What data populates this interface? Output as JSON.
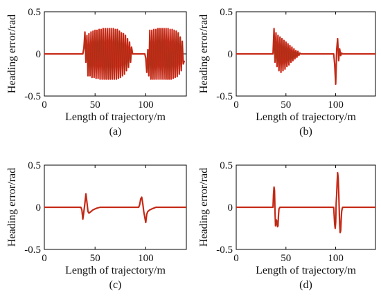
{
  "chart_data": [
    {
      "type": "line",
      "panel": "(a)",
      "xlabel": "Length of trajectory/m",
      "ylabel": "Heading error/rad",
      "xlim": [
        0,
        140
      ],
      "ylim": [
        -0.5,
        0.5
      ],
      "xticks": [
        0,
        50,
        100
      ],
      "yticks": [
        0.5,
        0,
        -0.5
      ],
      "x": [
        0,
        38,
        39,
        40,
        41,
        42,
        43,
        44,
        45,
        46,
        47,
        48,
        49,
        50,
        51,
        52,
        53,
        54,
        55,
        56,
        57,
        58,
        59,
        60,
        61,
        62,
        63,
        64,
        65,
        66,
        67,
        68,
        69,
        70,
        71,
        72,
        73,
        74,
        75,
        76,
        77,
        78,
        79,
        80,
        81,
        82,
        83,
        84,
        85,
        86,
        87,
        88,
        89,
        90,
        91,
        92,
        93,
        94,
        95,
        96,
        97,
        98,
        99,
        100,
        101,
        102,
        103,
        104,
        105,
        106,
        107,
        108,
        109,
        110,
        111,
        112,
        113,
        114,
        115,
        116,
        117,
        118,
        119,
        120,
        121,
        122,
        123,
        124,
        125,
        126,
        127,
        128,
        129,
        130,
        131,
        132,
        133,
        134,
        135,
        136,
        137,
        138
      ],
      "y": [
        0,
        0,
        0.07,
        0.26,
        -0.1,
        0.22,
        -0.26,
        0.24,
        -0.26,
        0.26,
        -0.28,
        0.27,
        -0.28,
        0.28,
        -0.29,
        0.28,
        -0.29,
        0.29,
        -0.3,
        0.29,
        -0.3,
        0.3,
        -0.3,
        0.3,
        -0.3,
        0.3,
        -0.3,
        0.3,
        -0.3,
        0.3,
        -0.3,
        0.3,
        -0.3,
        0.29,
        -0.3,
        0.29,
        -0.29,
        0.27,
        -0.28,
        0.25,
        -0.26,
        0.24,
        -0.24,
        0.22,
        -0.2,
        0.18,
        -0.16,
        0.14,
        -0.1,
        0.08,
        0,
        0,
        0,
        0,
        0,
        0,
        0,
        0,
        0,
        0,
        0,
        0,
        0,
        -0.05,
        -0.22,
        0.05,
        -0.26,
        0.28,
        -0.3,
        0.28,
        -0.3,
        0.29,
        -0.3,
        0.29,
        -0.3,
        0.3,
        -0.3,
        0.3,
        -0.3,
        0.3,
        -0.3,
        0.3,
        -0.3,
        0.3,
        -0.3,
        0.3,
        -0.3,
        0.29,
        -0.3,
        0.29,
        -0.29,
        0.28,
        -0.28,
        0.27,
        -0.27,
        0.25,
        -0.24,
        0.2,
        -0.2,
        0.15,
        -0.12,
        -0.08
      ]
    },
    {
      "type": "line",
      "panel": "(b)",
      "xlabel": "Length of trajectory/m",
      "ylabel": "Heading error/rad",
      "xlim": [
        0,
        140
      ],
      "ylim": [
        -0.5,
        0.5
      ],
      "xticks": [
        0,
        50,
        100
      ],
      "yticks": [
        0.5,
        0,
        -0.5
      ],
      "x": [
        0,
        37,
        38,
        39,
        40,
        41,
        42,
        43,
        44,
        45,
        46,
        47,
        48,
        49,
        50,
        51,
        52,
        53,
        54,
        55,
        56,
        57,
        58,
        59,
        60,
        61,
        62,
        63,
        64,
        65,
        66,
        98,
        99,
        100,
        101,
        102,
        103,
        104,
        105,
        106,
        107,
        108,
        140
      ],
      "y": [
        0,
        0,
        0.3,
        -0.1,
        0.25,
        -0.15,
        0.22,
        -0.2,
        0.2,
        -0.22,
        0.18,
        -0.2,
        0.16,
        -0.18,
        0.14,
        -0.15,
        0.12,
        -0.13,
        0.1,
        -0.1,
        0.08,
        -0.08,
        0.06,
        -0.06,
        0.04,
        -0.04,
        0.03,
        -0.02,
        0.01,
        0,
        0,
        0,
        -0.12,
        -0.36,
        0.05,
        0.18,
        -0.08,
        0.06,
        -0.02,
        0.01,
        0,
        0,
        0
      ]
    },
    {
      "type": "line",
      "panel": "(c)",
      "xlabel": "Length of trajectory/m",
      "ylabel": "Heading error/rad",
      "xlim": [
        0,
        140
      ],
      "ylim": [
        -0.5,
        0.5
      ],
      "xticks": [
        0,
        50,
        100
      ],
      "yticks": [
        0.5,
        0,
        -0.5
      ],
      "x": [
        0,
        36,
        37,
        38,
        39,
        40,
        41,
        42,
        43,
        44,
        45,
        46,
        48,
        50,
        52,
        55,
        60,
        93,
        94,
        95,
        96,
        97,
        98,
        99,
        100,
        101,
        102,
        104,
        106,
        108,
        110,
        140
      ],
      "y": [
        0,
        0,
        -0.03,
        -0.14,
        -0.05,
        0.05,
        0.16,
        0.06,
        -0.05,
        -0.07,
        -0.06,
        -0.05,
        -0.03,
        -0.02,
        -0.01,
        0,
        0,
        0,
        0.03,
        0.1,
        0.12,
        0.05,
        -0.05,
        -0.12,
        -0.18,
        -0.08,
        -0.05,
        -0.03,
        -0.02,
        -0.01,
        0,
        0
      ]
    },
    {
      "type": "line",
      "panel": "(d)",
      "xlabel": "Length of trajectory/m",
      "ylabel": "Heading error/rad",
      "xlim": [
        0,
        140
      ],
      "ylim": [
        -0.5,
        0.5
      ],
      "xticks": [
        0,
        50,
        100
      ],
      "yticks": [
        0.5,
        0,
        -0.5
      ],
      "x": [
        0,
        37,
        37.5,
        38,
        38.5,
        39,
        39.5,
        40,
        40.5,
        41,
        41.5,
        42,
        42.5,
        43,
        44,
        45,
        46,
        98,
        98.5,
        99,
        99.5,
        100,
        100.5,
        101,
        101.5,
        102,
        102.5,
        103,
        103.5,
        104,
        104.5,
        105,
        105.5,
        106,
        106.5,
        107,
        108,
        109,
        140
      ],
      "y": [
        0,
        0,
        0.15,
        0.24,
        0.2,
        -0.05,
        -0.22,
        -0.2,
        -0.15,
        -0.18,
        -0.23,
        -0.22,
        -0.1,
        -0.02,
        0,
        0,
        0,
        0,
        -0.1,
        -0.2,
        -0.25,
        -0.18,
        0.05,
        0.15,
        0.3,
        0.41,
        0.35,
        0.2,
        0.0,
        -0.2,
        -0.3,
        -0.28,
        -0.15,
        -0.05,
        -0.02,
        0,
        0,
        0,
        0
      ]
    }
  ]
}
